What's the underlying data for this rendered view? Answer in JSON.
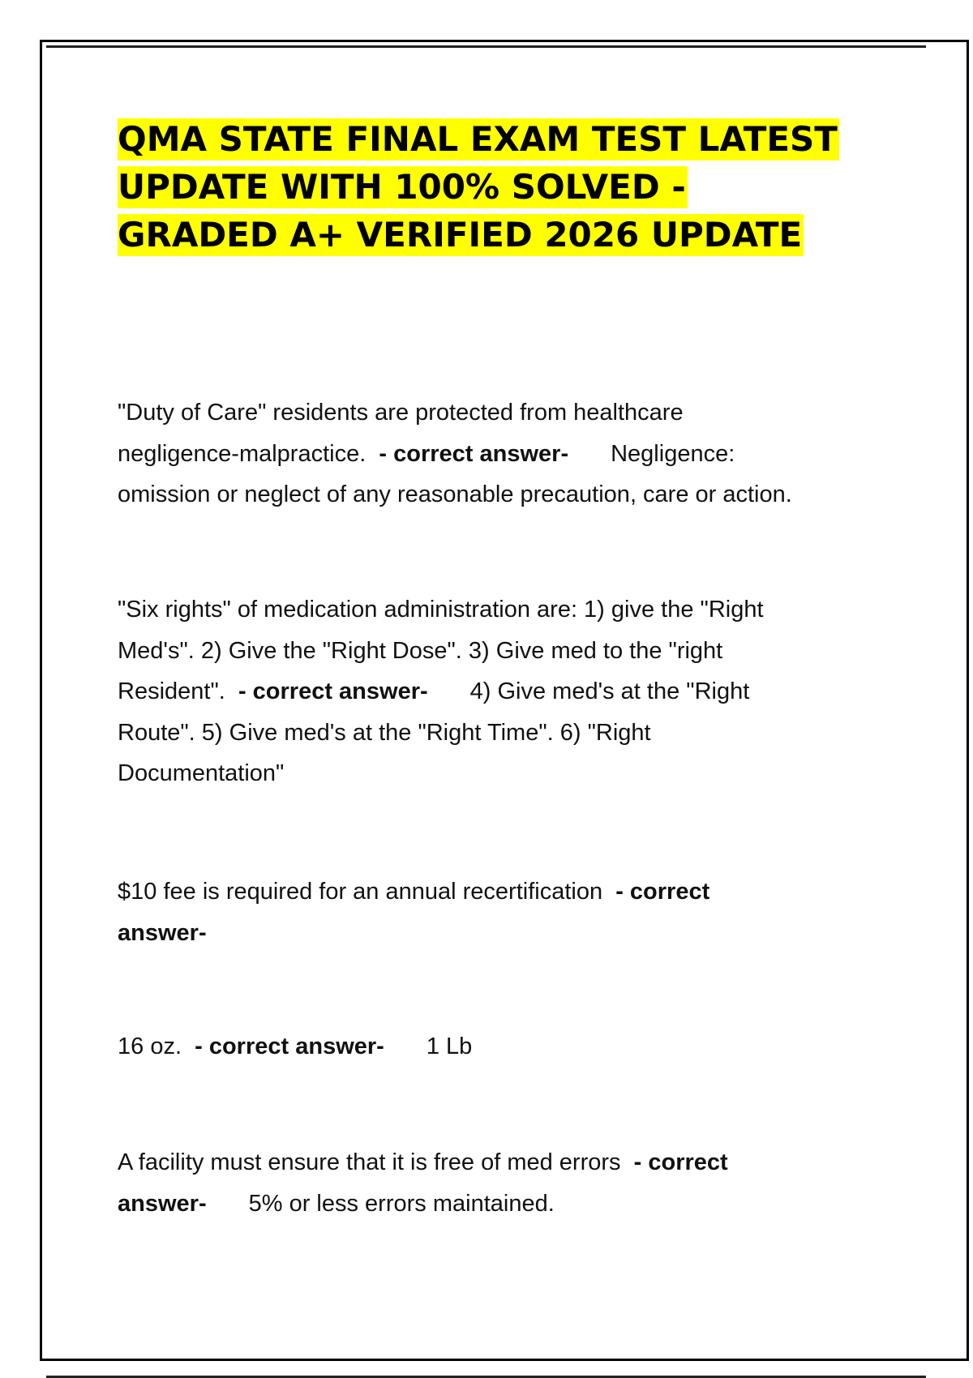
{
  "document": {
    "title_lines": [
      "QMA STATE FINAL EXAM TEST LATEST",
      "UPDATE WITH 100% SOLVED -",
      "GRADED A+ VERIFIED 2026 UPDATE"
    ],
    "highlight_color": "#ffff00",
    "answer_label": "- correct answer-",
    "answer_label_parts": [
      "- correct",
      "answer-"
    ],
    "items": [
      {
        "question_lines": [
          "\"Duty of Care\" residents are protected from healthcare",
          "negligence-malpractice."
        ],
        "answer_lines": [
          "Negligence:",
          "omission or neglect of any reasonable precaution, care or action."
        ]
      },
      {
        "question_lines": [
          "\"Six rights\" of medication administration are: 1) give the \"Right",
          "Med's\". 2) Give the \"Right Dose\". 3) Give med to the \"right",
          "Resident\"."
        ],
        "answer_lines": [
          "4) Give med's at the \"Right",
          "Route\". 5) Give med's at the \"Right Time\". 6) \"Right",
          "Documentation\""
        ]
      },
      {
        "question_lines": [
          "$10 fee is required for an annual recertification"
        ],
        "answer_lines": []
      },
      {
        "question_lines": [
          "16 oz."
        ],
        "answer_lines": [
          "1 Lb"
        ]
      },
      {
        "question_lines": [
          "A facility must ensure that it is free of med errors"
        ],
        "answer_lines": [
          "5% or less errors maintained."
        ]
      }
    ]
  }
}
